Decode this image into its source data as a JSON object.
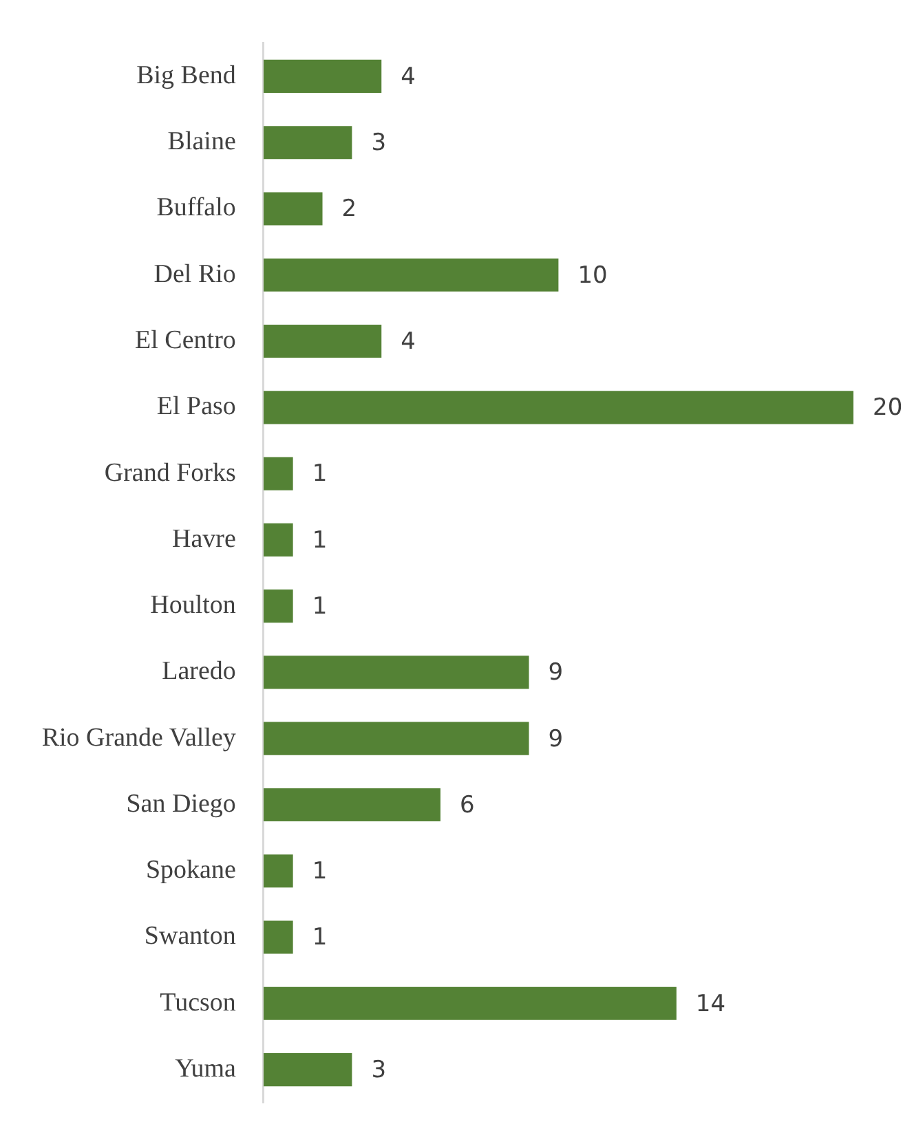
{
  "chart_data": {
    "type": "bar",
    "orientation": "horizontal",
    "categories": [
      "Big Bend",
      "Blaine",
      "Buffalo",
      "Del Rio",
      "El Centro",
      "El Paso",
      "Grand Forks",
      "Havre",
      "Houlton",
      "Laredo",
      "Rio Grande Valley",
      "San Diego",
      "Spokane",
      "Swanton",
      "Tucson",
      "Yuma"
    ],
    "values": [
      4,
      3,
      2,
      10,
      4,
      20,
      1,
      1,
      1,
      9,
      9,
      6,
      1,
      1,
      14,
      3
    ],
    "color": "#548235",
    "data_labels": true,
    "grid": false,
    "legend": false,
    "tick_labels": "y"
  }
}
